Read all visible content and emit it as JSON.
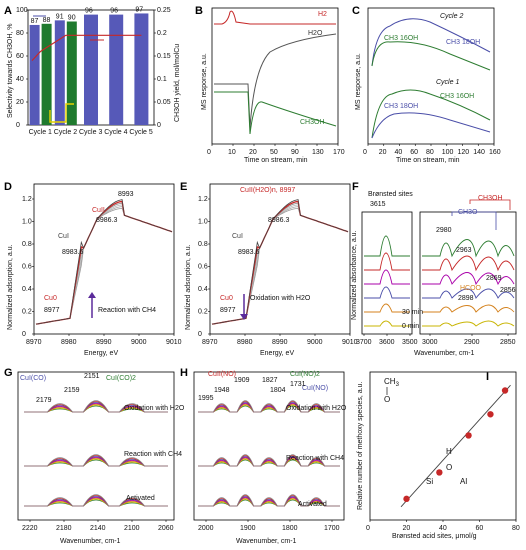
{
  "colors": {
    "blue": "#4a4ea8",
    "green": "#2e7d32",
    "red": "#c62828",
    "dark": "#555555",
    "orange": "#d4821e",
    "yellow": "#c8b400",
    "bar_blue": "#5659b8",
    "bar_green": "#1f7a2e"
  },
  "panels": {
    "A": {
      "letter": "A",
      "ylabel_left": "Selectivity towards CH3OH, %",
      "ylabel_right": "CH3OH yield, mol/molCu"
    },
    "B": {
      "letter": "B",
      "ylabel": "MS response, a.u.",
      "xlabel": "Time on stream, min",
      "series": [
        "H2",
        "H2O",
        "CH3OH"
      ]
    },
    "C": {
      "letter": "C",
      "ylabel": "MS response, a.u.",
      "xlabel": "Time on stream, min",
      "cycle_top": "Cycle 2",
      "cycle_bottom": "Cycle 1",
      "s16": "CH3 16OH",
      "s18": "CH3 18OH"
    },
    "D": {
      "letter": "D",
      "ylabel": "Normalized adsorption, a.u.",
      "xlabel": "Energy, eV",
      "note": "Reaction with CH4",
      "peaks": [
        "8993",
        "8986.3",
        "8983.6",
        "8977"
      ]
    },
    "E": {
      "letter": "E",
      "ylabel": "Normalized adsorption, a.u.",
      "xlabel": "Energy, eV",
      "note": "Oxidation with H2O",
      "top": "CuII(H2O)n, 8997",
      "peaks": [
        "8986.3",
        "8983.6",
        "8977"
      ]
    },
    "F": {
      "letter": "F",
      "ylabel": "Normalized absorbance, a.u.",
      "xlabel": "Wavenumber, cm-1",
      "bronsted": "Brønsted sites",
      "time_top": "30 min",
      "time_bottom": "0 min",
      "peaks": [
        "3615",
        "2980",
        "2963",
        "2898",
        "2869",
        "2856"
      ],
      "labels": {
        "ch3oh": "CH3OH",
        "ch3o": "CH3O",
        "hcoo": "HCOO"
      }
    },
    "G": {
      "letter": "G",
      "xlabel": "Wavenumber, cm-1",
      "cu_co": "CuI(CO)",
      "cu_co2": "CuI(CO)2",
      "peaks": [
        "2179",
        "2159",
        "2151"
      ],
      "labels": [
        "Oxidation with H2O",
        "Reaction with CH4",
        "Activated"
      ]
    },
    "H": {
      "letter": "H",
      "xlabel": "Wavenumber, cm-1",
      "cuii_no": "CuII(NO)",
      "cui_no2": "CuI(NO)2",
      "cui_no": "CuI(NO)",
      "peaks": [
        "1995",
        "1948",
        "1909",
        "1827",
        "1804",
        "1731"
      ],
      "labels": [
        "Oxidation with H2O",
        "Reaction with CH4",
        "Activated"
      ]
    },
    "I": {
      "letter": "I",
      "ylabel": "Relative number of methoxy species, a.u.",
      "xlabel": "Brønsted acid sites, μmol/g"
    }
  },
  "chart_data": [
    {
      "panel": "A",
      "type": "bar",
      "categories": [
        "Cycle 1",
        "Cycle 2",
        "Cycle 3",
        "Cycle 4",
        "Cycle 5"
      ],
      "series": [
        {
          "values": [
            87,
            91,
            96,
            96,
            97
          ]
        },
        {
          "values": [
            88,
            90,
            null,
            null,
            null
          ]
        }
      ],
      "data_labels": [
        "87",
        "88",
        "91",
        "90",
        "96",
        "96",
        "97"
      ],
      "ylim_left": [
        0,
        100
      ],
      "yticks_left": [
        "0",
        "20",
        "40",
        "60",
        "80",
        "100"
      ],
      "ylim_right": [
        0,
        0.25
      ],
      "yticks_right": [
        "0",
        "0.05",
        "0.1",
        "0.15",
        "0.2",
        "0.25"
      ],
      "yield_line": [
        0.16,
        0.195,
        0.195,
        0.195,
        0.195
      ]
    },
    {
      "panel": "B",
      "type": "line",
      "xlim": [
        0,
        170
      ],
      "xticks": [
        "0",
        "10",
        "20",
        "50",
        "90",
        "130",
        "170"
      ],
      "series_names": [
        "H2",
        "H2O",
        "CH3OH"
      ]
    },
    {
      "panel": "C",
      "type": "line",
      "xlim": [
        0,
        160
      ],
      "xticks": [
        "0",
        "20",
        "40",
        "60",
        "80",
        "100",
        "120",
        "140",
        "160"
      ]
    },
    {
      "panel": "D",
      "type": "line",
      "xlim": [
        8970,
        9010
      ],
      "xticks": [
        "8970",
        "8980",
        "8990",
        "9000",
        "9010"
      ],
      "ylim": [
        0,
        1.3
      ],
      "yticks": [
        "0",
        "0.2",
        "0.4",
        "0.6",
        "0.8",
        "1.0",
        "1.2"
      ],
      "labels": [
        "CuII",
        "CuI",
        "Cu0"
      ]
    },
    {
      "panel": "E",
      "type": "line",
      "xlim": [
        8970,
        9010
      ],
      "xticks": [
        "8970",
        "8980",
        "8990",
        "9000",
        "9010"
      ],
      "ylim": [
        0,
        1.3
      ],
      "yticks": [
        "0",
        "0.2",
        "0.4",
        "0.6",
        "0.8",
        "1.0",
        "1.2"
      ],
      "labels": [
        "CuI",
        "Cu0"
      ]
    },
    {
      "panel": "F",
      "type": "line",
      "xticks": [
        "3700",
        "3600",
        "3500",
        "3000",
        "2900",
        "2850"
      ]
    },
    {
      "panel": "G",
      "type": "line",
      "xticks": [
        "2220",
        "2180",
        "2140",
        "2100",
        "2060"
      ]
    },
    {
      "panel": "H",
      "type": "line",
      "xticks": [
        "2000",
        "1900",
        "1800",
        "1700"
      ]
    },
    {
      "panel": "I",
      "type": "scatter",
      "x": [
        20,
        38,
        54,
        66,
        74
      ],
      "y": [
        0.04,
        0.09,
        0.16,
        0.2,
        0.245
      ],
      "xlim": [
        0,
        80
      ],
      "ylim": [
        0,
        0.28
      ],
      "xticks": [
        "0",
        "20",
        "40",
        "60",
        "80"
      ]
    }
  ]
}
